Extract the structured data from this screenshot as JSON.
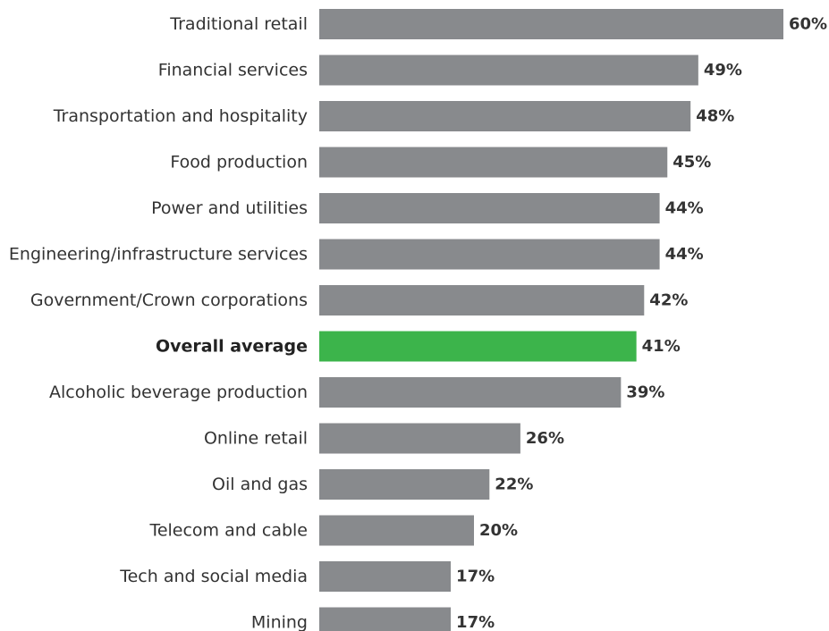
{
  "chart_data": {
    "type": "bar",
    "orientation": "horizontal",
    "categories": [
      "Traditional retail",
      "Financial services",
      "Transportation and hospitality",
      "Food production",
      "Power and utilities",
      "Engineering/infrastructure services",
      "Government/Crown corporations",
      "Overall average",
      "Alcoholic beverage production",
      "Online retail",
      "Oil and gas",
      "Telecom and cable",
      "Tech and social media",
      "Mining"
    ],
    "values": [
      60,
      49,
      48,
      45,
      44,
      44,
      42,
      41,
      39,
      26,
      22,
      20,
      17,
      17
    ],
    "value_labels": [
      "60%",
      "49%",
      "48%",
      "45%",
      "44%",
      "44%",
      "42%",
      "41%",
      "39%",
      "26%",
      "22%",
      "20%",
      "17%",
      "17%"
    ],
    "highlight_index": 7,
    "title": "",
    "xlabel": "",
    "ylabel": "",
    "xlim": [
      0,
      60
    ],
    "grid": false,
    "legend": "none",
    "colors": {
      "bar": "#888a8d",
      "highlight_bar": "#3cb44b",
      "highlight_value": "#3cb44b",
      "label": "#333333"
    }
  }
}
